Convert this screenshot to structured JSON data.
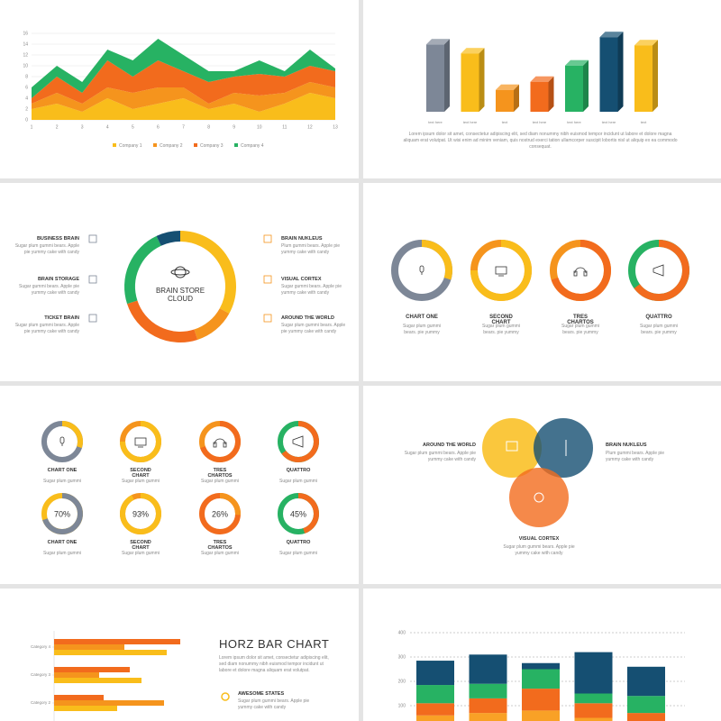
{
  "slides": {
    "bar3d_text": "Lorem ipsum dolor sit amet, consectetur adipiscing elit, sed diam nonummy nibh euismod tempor incidunt ut labore et dolore magna aliquam erat volutpat. Ut wisi enim ad minim veniam, quis nostrud exerci tation ullamcorper suscipit lobortis nisl ut aliquip ex ea commodo consequat.",
    "brain_items": [
      {
        "title": "BUSINESS BRAIN",
        "text": "Sugar plum gummi bears. Apple pie yummy cake with candy"
      },
      {
        "title": "BRAIN STORAGE",
        "text": "Sugar gummi bears. Apple pie yummy cake with candy"
      },
      {
        "title": "TICKET BRAIN",
        "text": "Sugar plum gummi bears. Apple pie yummy cake with candy"
      },
      {
        "title": "BRAIN NUKLEUS",
        "text": "Plum gummi bears. Apple pie yummy cake with candy"
      },
      {
        "title": "VISUAL CORTEX",
        "text": "Sugar gummi bears. Apple pie yummy cake with candy"
      },
      {
        "title": "AROUND THE WORLD",
        "text": "Sugar plum gummi bears. Apple pie yummy cake with candy"
      }
    ],
    "venn": [
      {
        "title": "AROUND THE WORLD",
        "text": "Sugar plum gummi bears. Apple pie yummy cake with candy"
      },
      {
        "title": "BRAIN NUKLEUS",
        "text": "Plum gummi bears. Apple pie yummy cake with candy"
      },
      {
        "title": "VISUAL CORTEX",
        "text": "Sugar plum gummi bears. Apple pie yummy cake with candy"
      }
    ],
    "horz": {
      "title": "HORZ BAR CHART",
      "text": "Lorem ipsum dolor sit amet, consectetur adipiscing elit, sed diam nonummy nibh euismod tempor incidunt ut labore et dolore magna aliquam erat volutpat.",
      "item_title": "AWESOME STATES",
      "item_text": "Sugar plum gummi bears. Apple pie yummy cake with candy"
    }
  },
  "chart_data": [
    {
      "type": "area",
      "x": [
        1,
        2,
        3,
        4,
        5,
        6,
        7,
        8,
        9,
        10,
        11,
        12,
        13
      ],
      "xlim": [
        1,
        13
      ],
      "xticks": [
        1,
        2,
        3,
        4,
        5,
        6,
        7,
        8,
        9,
        10,
        11,
        12,
        13
      ],
      "ylim": [
        0,
        16
      ],
      "yticks": [
        0,
        2,
        4,
        6,
        8,
        10,
        12,
        14,
        16
      ],
      "grid": true,
      "series": [
        {
          "name": "Company 1",
          "color": "#f9bd1b",
          "values": [
            2,
            3,
            1.5,
            4,
            2,
            3,
            4,
            2,
            3,
            1.5,
            3,
            5,
            4
          ]
        },
        {
          "name": "Company 2",
          "color": "#f5941d",
          "values": [
            1,
            2,
            1.5,
            2,
            3,
            3,
            2,
            1,
            2,
            3,
            2,
            2,
            2
          ]
        },
        {
          "name": "Company 3",
          "color": "#f26b1d",
          "values": [
            1,
            3,
            2,
            5,
            3,
            5,
            3,
            4,
            3,
            4,
            3,
            3,
            3
          ]
        },
        {
          "name": "Company 4",
          "color": "#27b263",
          "values": [
            2,
            2,
            2,
            2,
            3,
            4,
            3,
            2,
            1,
            2.5,
            1,
            3,
            0.5
          ]
        }
      ]
    },
    {
      "type": "bar3d",
      "categories": [
        "text here",
        "text here",
        "text",
        "text here",
        "text here",
        "text here",
        "text"
      ],
      "values": [
        83,
        72,
        27,
        37,
        57,
        92,
        82
      ],
      "ylim": [
        0,
        100
      ],
      "colors": [
        "#7d8797",
        "#f9bd1b",
        "#f5941d",
        "#f26b1d",
        "#27b263",
        "#154f72",
        "#f9bd1b"
      ]
    },
    {
      "type": "donut",
      "center_label": "BRAIN STORE CLOUD",
      "values": [
        33,
        12,
        25,
        23,
        7
      ],
      "colors": [
        "#f9bd1b",
        "#f5941d",
        "#f26b1d",
        "#27b263",
        "#154f72"
      ]
    },
    {
      "type": "ring",
      "categories": [
        "CHART ONE",
        "SECOND CHART",
        "TRES CHARTOS",
        "QUATTRO"
      ],
      "descriptions": [
        "Sugar plum gummi bears. pie yummy",
        "Sugar plum gummi bears. pie yummy",
        "Sugar plum gummi bears. pie yummy",
        "Sugar plum gummi bears. pie yummy"
      ],
      "values": [
        30,
        75,
        70,
        65
      ],
      "colors": [
        "#f9bd1b",
        "#f9bd1b",
        "#f26b1d",
        "#f26b1d"
      ],
      "track_colors": [
        "#7d8797",
        "#f5941d",
        "#f5941d",
        "#27b263"
      ]
    },
    {
      "type": "ring",
      "categories": [
        "CHART ONE",
        "SECOND CHART",
        "TRES CHARTOS",
        "QUATTRO"
      ],
      "descriptions": [
        "Sugar plum gummi",
        "Sugar plum gummi",
        "Sugar plum gummi",
        "Sugar plum gummi"
      ],
      "values": [
        30,
        75,
        70,
        65
      ],
      "colors": [
        "#f9bd1b",
        "#f9bd1b",
        "#f26b1d",
        "#f26b1d"
      ],
      "track_colors": [
        "#7d8797",
        "#f5941d",
        "#f5941d",
        "#27b263"
      ]
    },
    {
      "type": "ring",
      "categories": [
        "CHART ONE",
        "SECOND CHART",
        "TRES CHARTOS",
        "QUATTRO"
      ],
      "descriptions": [
        "Sugar plum gummi",
        "Sugar plum gummi",
        "Sugar plum gummi",
        "Sugar plum gummi"
      ],
      "values": [
        70,
        93,
        26,
        45
      ],
      "value_labels": [
        "70%",
        "93%",
        "26%",
        "45%"
      ],
      "colors": [
        "#7d8797",
        "#f9bd1b",
        "#f5941d",
        "#f26b1d"
      ],
      "track_colors": [
        "#f9bd1b",
        "#f5941d",
        "#f26b1d",
        "#27b263"
      ]
    },
    {
      "type": "hbar",
      "categories": [
        "Category 4",
        "Category 3",
        "Category 2"
      ],
      "xlim": [
        0,
        160
      ],
      "series": [
        {
          "color": "#f26b1d",
          "values": [
            140,
            84,
            55
          ]
        },
        {
          "color": "#f5941d",
          "values": [
            78,
            50,
            122
          ]
        },
        {
          "color": "#f9bd1b",
          "values": [
            125,
            97,
            70
          ]
        }
      ]
    },
    {
      "type": "stacked_bar",
      "ylim": [
        0,
        400
      ],
      "yticks": [
        100,
        200,
        300,
        400
      ],
      "grid": true,
      "series": [
        {
          "color": "#f9a126",
          "values": [
            60,
            70,
            80,
            50,
            30
          ]
        },
        {
          "color": "#f26b1d",
          "values": [
            50,
            60,
            90,
            60,
            40
          ]
        },
        {
          "color": "#27b263",
          "values": [
            75,
            60,
            80,
            40,
            70
          ]
        },
        {
          "color": "#154f72",
          "values": [
            100,
            120,
            25,
            170,
            120
          ]
        }
      ]
    }
  ]
}
